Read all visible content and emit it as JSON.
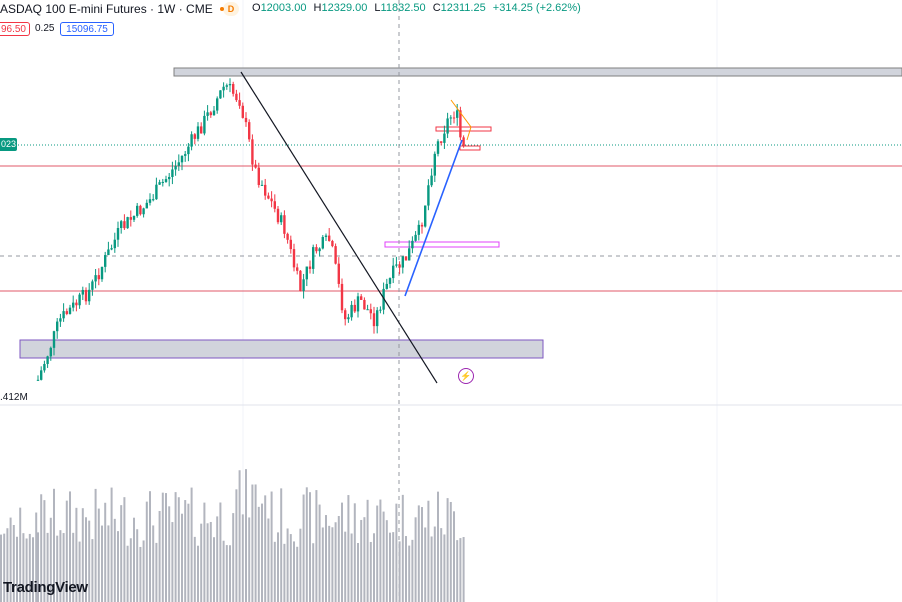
{
  "header": {
    "symbol_title": "ASDAQ 100 E-mini Futures · 1W · CME",
    "delay_badge": "D",
    "ohlc": {
      "open_label": "O",
      "open": "12003.00",
      "high_label": "H",
      "high": "12329.00",
      "low_label": "L",
      "low": "11832.50",
      "close_label": "C",
      "close": "12311.25",
      "change": "+314.25 (+2.62%)"
    }
  },
  "trade": {
    "sell_price": "96.50",
    "spread": "0.25",
    "buy_price": "15096.75"
  },
  "price_tag": "023",
  "volume_label": ".412M",
  "brand": "TradingView",
  "colors": {
    "up": "#089981",
    "down": "#f23645",
    "volume": "#b2b5be",
    "trendline_blue": "#2962ff",
    "zone_gray": "#c9c9cc",
    "horizontal_red": "#e0596a"
  },
  "icons": {
    "alert": "lightning-alert-icon"
  }
}
